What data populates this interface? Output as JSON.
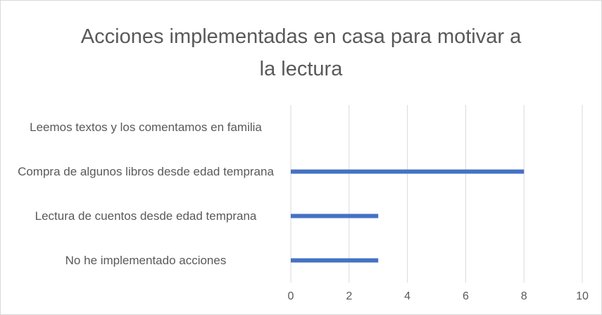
{
  "chart_data": {
    "type": "bar",
    "orientation": "horizontal",
    "title": "Acciones implementadas en casa para motivar a la lectura",
    "categories": [
      "Leemos textos y los comentamos en familia",
      "Compra de algunos libros desde edad temprana",
      "Lectura de cuentos desde edad temprana",
      "No he implementado acciones"
    ],
    "values": [
      0,
      8,
      3,
      3
    ],
    "color": "#4472c4",
    "xlim": [
      0,
      10
    ],
    "xticks": [
      0,
      2,
      4,
      6,
      8,
      10
    ],
    "grid": true
  }
}
